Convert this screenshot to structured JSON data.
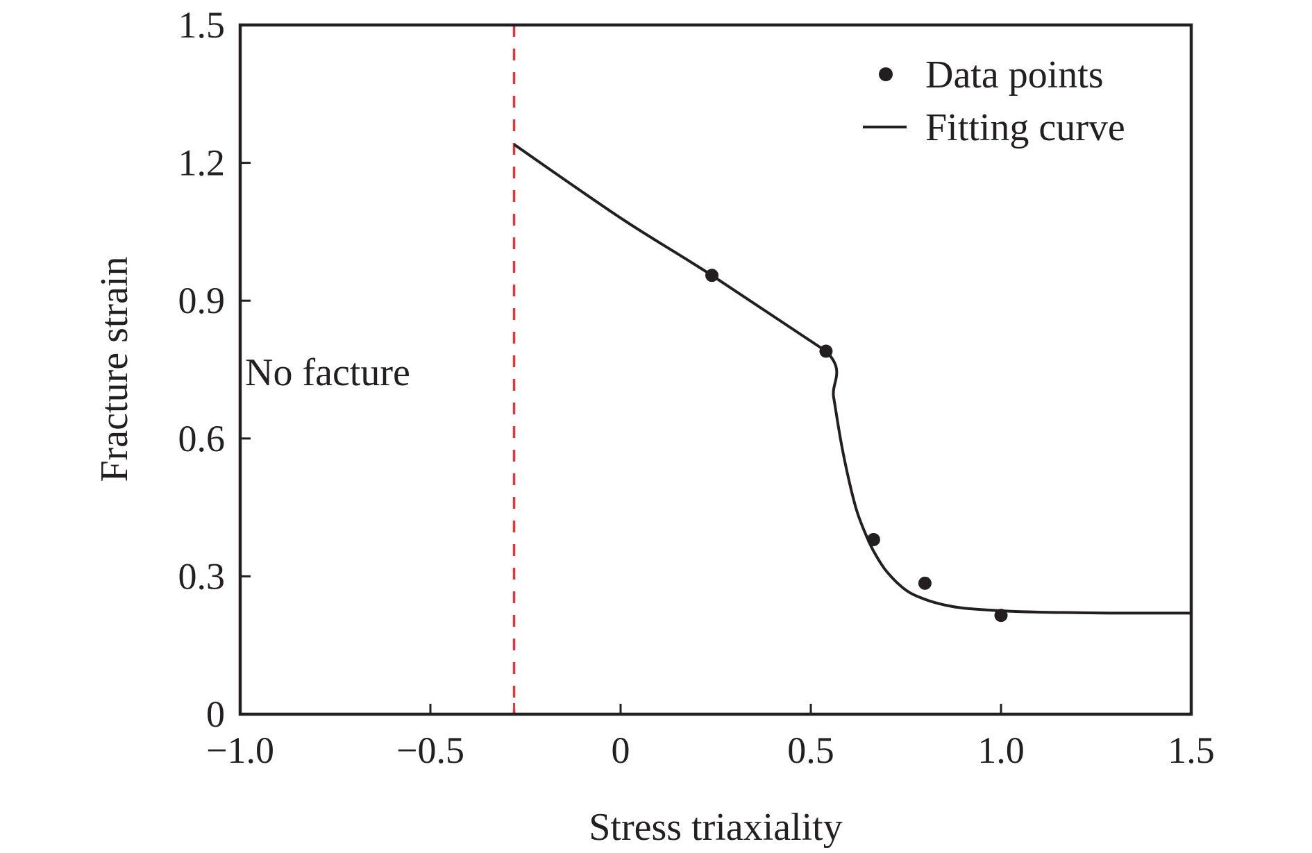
{
  "chart_data": {
    "type": "scatter",
    "title": "",
    "xlabel": "Stress triaxiality",
    "ylabel": "Fracture strain",
    "xlim": [
      -1.0,
      1.5
    ],
    "ylim": [
      0,
      1.5
    ],
    "grid": false,
    "xticks": [
      -1.0,
      -0.5,
      0,
      0.5,
      1.0,
      1.5
    ],
    "xtick_labels": [
      "−1.0",
      "−0.5",
      "0",
      "0.5",
      "1.0",
      "1.5"
    ],
    "yticks": [
      0,
      0.3,
      0.6,
      0.9,
      1.2,
      1.5
    ],
    "ytick_labels": [
      "0",
      "0.3",
      "0.6",
      "0.9",
      "1.2",
      "1.5"
    ],
    "legend": {
      "position": "top-right",
      "entries": [
        {
          "label": "Data points",
          "kind": "marker"
        },
        {
          "label": "Fitting curve",
          "kind": "line"
        }
      ]
    },
    "series": [
      {
        "name": "Data points",
        "kind": "scatter",
        "color": "#231f20",
        "x": [
          0.24,
          0.54,
          0.665,
          0.8,
          1.0
        ],
        "y": [
          0.955,
          0.79,
          0.38,
          0.285,
          0.215
        ]
      },
      {
        "name": "Fitting curve",
        "kind": "line",
        "color": "#231f20",
        "x": [
          -0.28,
          0.0,
          0.24,
          0.54,
          0.56,
          0.58,
          0.6,
          0.62,
          0.64,
          0.665,
          0.7,
          0.75,
          0.8,
          0.85,
          0.9,
          1.0,
          1.1,
          1.2,
          1.3,
          1.5
        ],
        "y": [
          1.24,
          1.08,
          0.955,
          0.79,
          0.69,
          0.59,
          0.51,
          0.445,
          0.4,
          0.355,
          0.31,
          0.27,
          0.25,
          0.238,
          0.231,
          0.225,
          0.222,
          0.221,
          0.22,
          0.22
        ]
      }
    ],
    "reference_line": {
      "orientation": "vertical",
      "x": -0.28,
      "style": "dashed",
      "color": "#e0383a"
    },
    "annotations": [
      {
        "text": "No facture",
        "x": -0.75,
        "y": 0.745
      }
    ]
  }
}
